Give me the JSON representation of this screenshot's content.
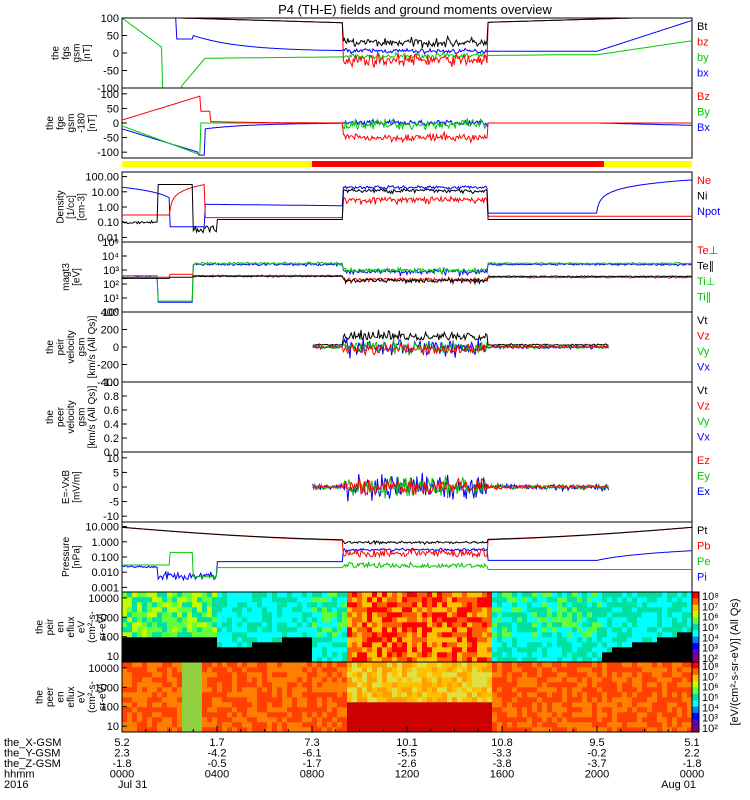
{
  "chart_data": {
    "type": "line",
    "title": "P4 (TH-E) fields and ground moments overview",
    "panels": [
      {
        "id": "fgs",
        "ylabel": [
          "the",
          "fgs",
          "gsm",
          "[nT]"
        ],
        "ylim": [
          -100,
          100
        ],
        "ticks": [
          "100",
          "50",
          "0",
          "-50",
          "-100"
        ],
        "scale": "linear",
        "legend": [
          {
            "name": "Bt",
            "color": "#000000"
          },
          {
            "name": "bz",
            "color": "#ff0000"
          },
          {
            "name": "by",
            "color": "#00c800"
          },
          {
            "name": "bx",
            "color": "#0000ff"
          }
        ]
      },
      {
        "id": "fge",
        "ylabel": [
          "the",
          "fge",
          "gsm",
          "-180",
          "[nT]"
        ],
        "ylim": [
          -120,
          120
        ],
        "ticks": [
          "100",
          "50",
          "0",
          "-50",
          "-100"
        ],
        "scale": "linear",
        "legend": [
          {
            "name": "Bz",
            "color": "#ff0000"
          },
          {
            "name": "By",
            "color": "#00c800"
          },
          {
            "name": "Bx",
            "color": "#0000ff"
          }
        ]
      },
      {
        "id": "density",
        "ylabel": [
          "Density",
          "[1/cc]",
          "[cm-3]"
        ],
        "ylim": [
          0.005,
          200
        ],
        "ticks": [
          "100.00",
          "10.00",
          "1.00",
          "0.10",
          "0.01"
        ],
        "scale": "log",
        "legend": [
          {
            "name": "Ne",
            "color": "#ff0000"
          },
          {
            "name": "Ni",
            "color": "#000000"
          },
          {
            "name": "Npot",
            "color": "#0000ff"
          }
        ]
      },
      {
        "id": "temp",
        "ylabel": [
          "magt3",
          "[eV]"
        ],
        "ylim": [
          1,
          100000
        ],
        "ticks": [
          "10⁵",
          "10⁴",
          "10³",
          "10²",
          "10¹",
          "10⁰"
        ],
        "scale": "log",
        "legend": [
          {
            "name": "Te⊥",
            "color": "#ff0000"
          },
          {
            "name": "Te∥",
            "color": "#000000"
          },
          {
            "name": "Ti⊥",
            "color": "#00c800"
          },
          {
            "name": "Ti∥",
            "color": "#00c800"
          }
        ]
      },
      {
        "id": "peir_vel",
        "ylabel": [
          "the",
          "peir",
          "velocity",
          "gsm",
          "[km/s (All Qs)]"
        ],
        "ylim": [
          -400,
          400
        ],
        "ticks": [
          "400",
          "200",
          "0",
          "-200",
          "-400"
        ],
        "scale": "linear",
        "legend": [
          {
            "name": "Vt",
            "color": "#000000"
          },
          {
            "name": "Vz",
            "color": "#ff0000"
          },
          {
            "name": "Vy",
            "color": "#00c800"
          },
          {
            "name": "Vx",
            "color": "#0000ff"
          }
        ]
      },
      {
        "id": "peer_vel",
        "ylabel": [
          "the",
          "peer",
          "velocity",
          "gsm",
          "[km/s (All Qs)]"
        ],
        "ylim": [
          0,
          1
        ],
        "ticks": [
          "1.0",
          "0.8",
          "0.6",
          "0.4",
          "0.2",
          "0.0"
        ],
        "scale": "linear",
        "legend": [
          {
            "name": "Vt",
            "color": "#000000"
          },
          {
            "name": "Vz",
            "color": "#ff0000"
          },
          {
            "name": "Vy",
            "color": "#00c800"
          },
          {
            "name": "Vx",
            "color": "#0000ff"
          }
        ]
      },
      {
        "id": "efield",
        "ylabel": [
          "E=-VxB",
          "[mV/m]"
        ],
        "ylim": [
          -12,
          12
        ],
        "ticks": [
          "10",
          "5",
          "0",
          "-5",
          "-10"
        ],
        "scale": "linear",
        "legend": [
          {
            "name": "Ez",
            "color": "#ff0000"
          },
          {
            "name": "Ey",
            "color": "#00c800"
          },
          {
            "name": "Ex",
            "color": "#0000ff"
          }
        ]
      },
      {
        "id": "pressure",
        "ylabel": [
          "Pressure",
          "[nPa]"
        ],
        "ylim": [
          0.0005,
          20
        ],
        "ticks": [
          "10.000",
          "1.000",
          "0.100",
          "0.010",
          "0.001"
        ],
        "scale": "log",
        "legend": [
          {
            "name": "Pt",
            "color": "#000000"
          },
          {
            "name": "Pb",
            "color": "#ff0000"
          },
          {
            "name": "Pe",
            "color": "#00c800"
          },
          {
            "name": "Pi",
            "color": "#0000ff"
          }
        ]
      },
      {
        "id": "peir_spec",
        "ylabel": [
          "the",
          "peir",
          "en",
          "eflux",
          "eV",
          "(cm²-s-",
          "sr-eV)"
        ],
        "ylim": [
          5,
          20000
        ],
        "ticks": [
          "10000",
          "1000",
          "100",
          "10"
        ],
        "scale": "log",
        "legend": []
      },
      {
        "id": "peer_spec",
        "ylabel": [
          "the",
          "peer",
          "en",
          "eflux",
          "eV",
          "(cm²-s-",
          "sr-eV)"
        ],
        "ylim": [
          5,
          20000
        ],
        "ticks": [
          "10000",
          "1000",
          "100",
          "10"
        ],
        "scale": "log",
        "legend": []
      }
    ],
    "colorbar": {
      "label": "[eV/(cm²-s-sr-eV)] (All Qs)",
      "ticks": [
        "10⁸",
        "10⁷",
        "10⁶",
        "10⁵",
        "10⁴",
        "10³",
        "10²"
      ]
    },
    "x_axis": {
      "rows": [
        {
          "label": "the_X-GSM",
          "values": [
            "5.2",
            "1.7",
            "7.3",
            "10.1",
            "10.8",
            "9.5",
            "5.1"
          ]
        },
        {
          "label": "the_Y-GSM",
          "values": [
            "2.3",
            "-4.2",
            "-6.1",
            "-5.5",
            "-3.3",
            "-0.2",
            "2.2"
          ]
        },
        {
          "label": "the_Z-GSM",
          "values": [
            "-1.8",
            "-0.5",
            "-1.7",
            "-2.6",
            "-3.8",
            "-3.7",
            "-1.8"
          ]
        },
        {
          "label": "hhmm",
          "values": [
            "0000",
            "0400",
            "0800",
            "1200",
            "1600",
            "2000",
            "0000"
          ]
        }
      ],
      "year": "2016",
      "start_date": "Jul 31",
      "end_date": "Aug 01"
    }
  }
}
